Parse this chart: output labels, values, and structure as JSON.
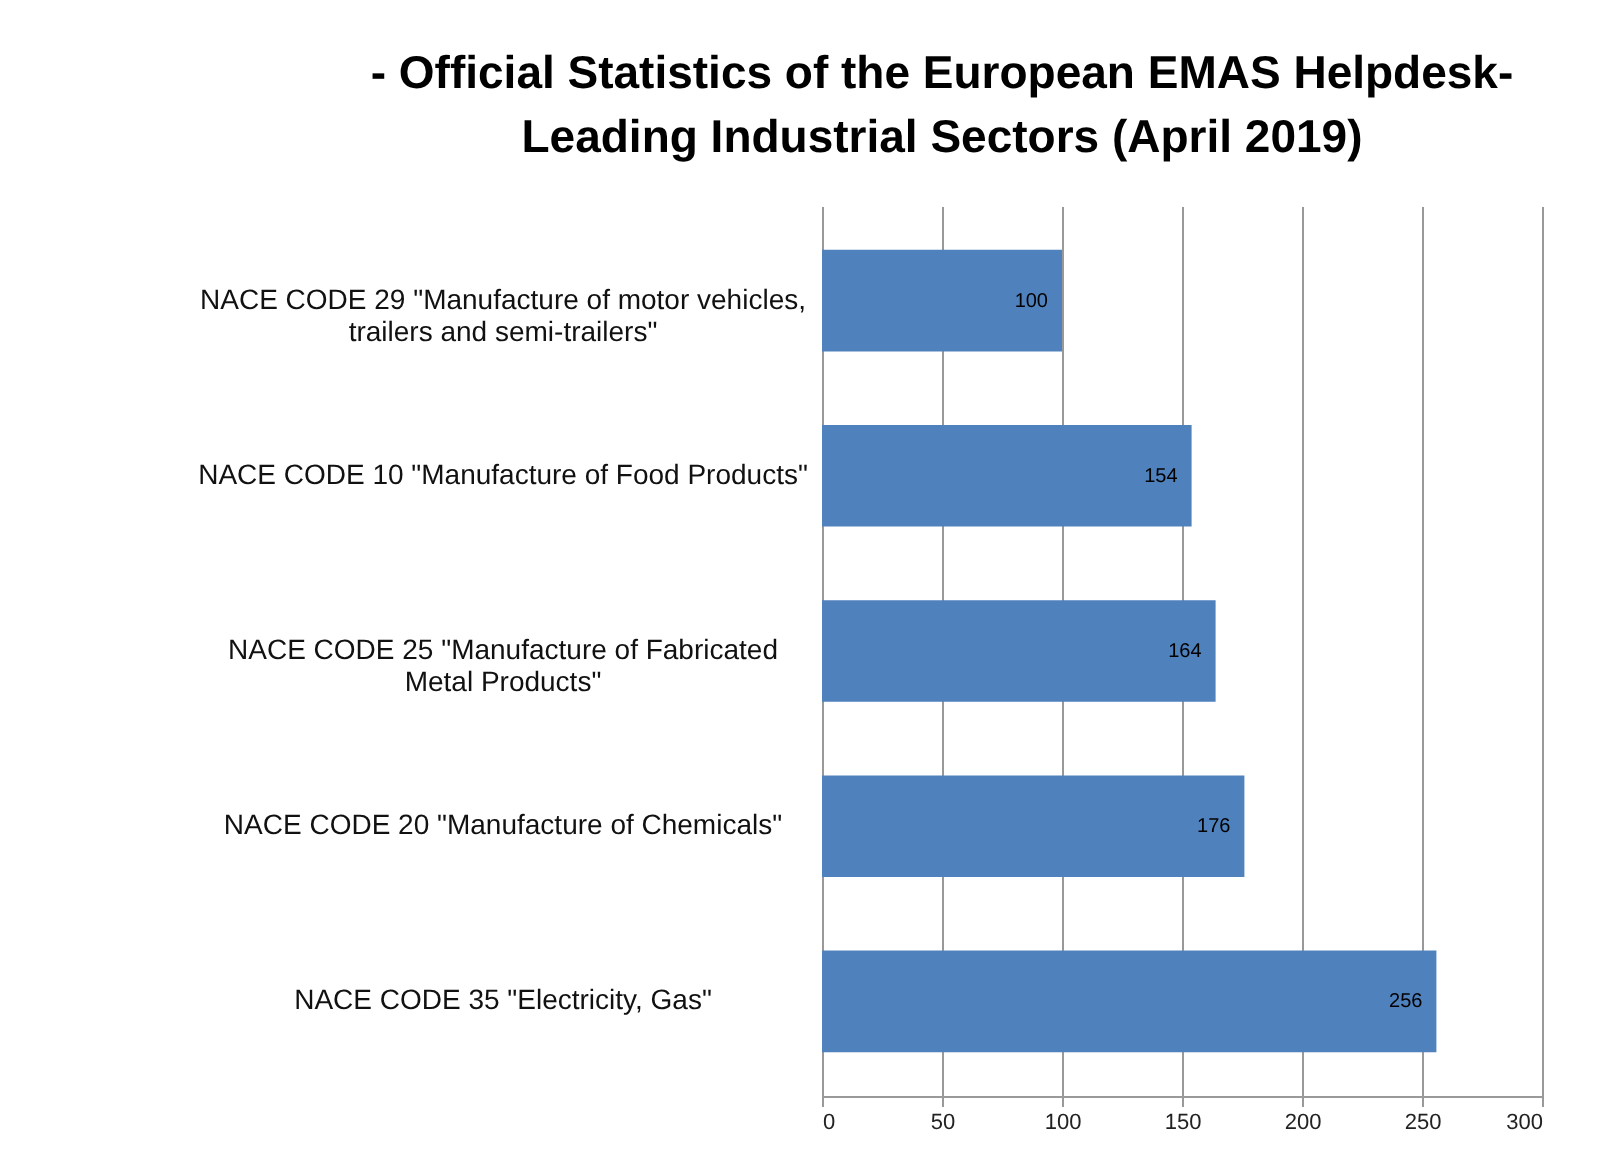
{
  "chart_data": {
    "type": "bar",
    "orientation": "horizontal",
    "title": "- Official Statistics of the European EMAS Helpdesk-\nLeading Industrial Sectors (April 2019)",
    "categories": [
      "NACE CODE 29 \"Manufacture of motor vehicles, trailers and semi-trailers\"",
      "NACE CODE 10 \"Manufacture of Food Products\"",
      "NACE CODE 25 \"Manufacture of Fabricated Metal Products\"",
      "NACE CODE 20 \"Manufacture of Chemicals\"",
      "NACE CODE 35 \"Electricity, Gas\""
    ],
    "values": [
      100,
      154,
      164,
      176,
      256
    ],
    "color": "#4f81bd",
    "data_labels": true,
    "xlim": [
      0,
      300
    ],
    "xticks": [
      0,
      50,
      100,
      150,
      200,
      250,
      300
    ],
    "grid": "x"
  }
}
